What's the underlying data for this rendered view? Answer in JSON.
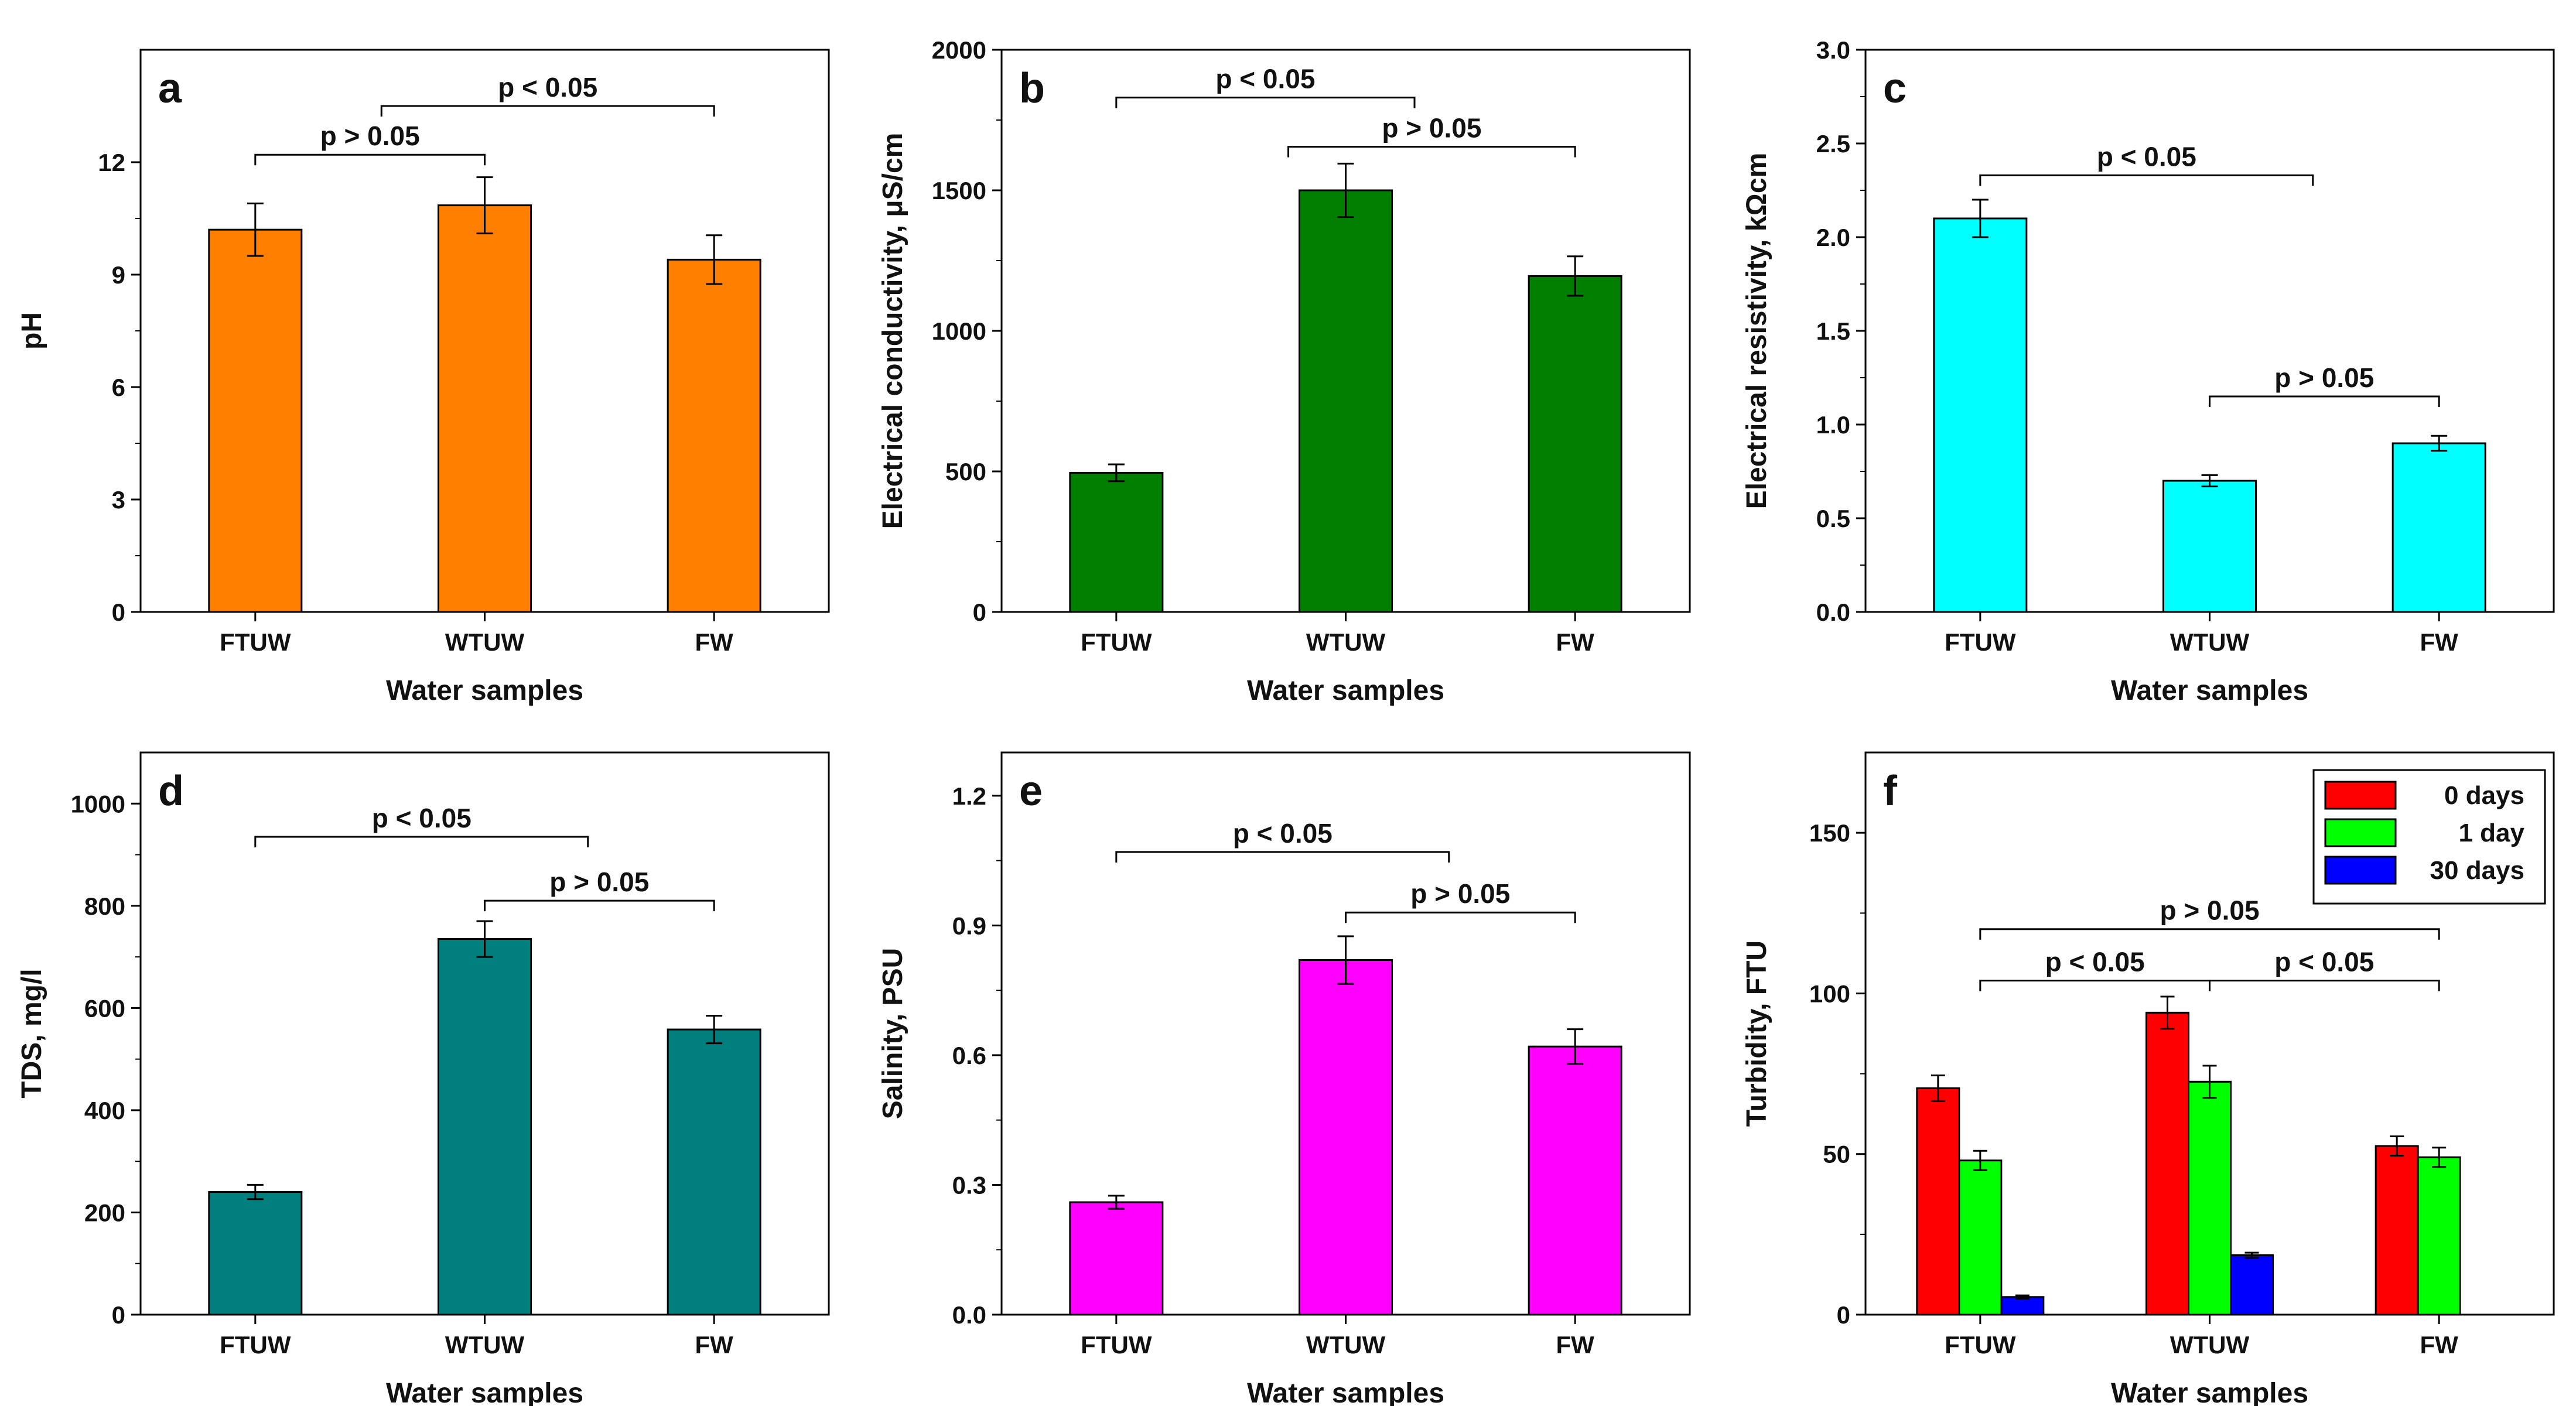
{
  "chart_data": [
    {
      "panel": "a",
      "type": "bar",
      "categories": [
        "FTUW",
        "WTUW",
        "FW"
      ],
      "values": [
        10.2,
        10.85,
        9.4
      ],
      "errors": [
        0.7,
        0.75,
        0.65
      ],
      "xlabel": "Water samples",
      "ylabel": "pH",
      "ylim": [
        0,
        15
      ],
      "yticks": [
        0,
        3,
        6,
        9,
        12
      ],
      "ytick_labels": [
        "0",
        "3",
        "6",
        "9",
        "12"
      ],
      "color": "#ff7f00",
      "significance": [
        {
          "from": 0,
          "to": 1,
          "label": "p > 0.05",
          "level": 12.2
        },
        {
          "from": 0.55,
          "to": 2,
          "label": "p < 0.05",
          "level": 13.5
        }
      ]
    },
    {
      "panel": "b",
      "type": "bar",
      "categories": [
        "FTUW",
        "WTUW",
        "FW"
      ],
      "values": [
        495,
        1500,
        1195
      ],
      "errors": [
        30,
        95,
        70
      ],
      "xlabel": "Water samples",
      "ylabel": "Electrical conductivity, μS/cm",
      "ylim": [
        0,
        2000
      ],
      "yticks": [
        0,
        500,
        1000,
        1500,
        2000
      ],
      "ytick_labels": [
        "0",
        "500",
        "1000",
        "1500",
        "2000"
      ],
      "color": "#007f00",
      "significance": [
        {
          "from": 0,
          "to": 1.3,
          "label": "p < 0.05",
          "level": 1830
        },
        {
          "from": 0.75,
          "to": 2,
          "label": "p > 0.05",
          "level": 1655
        }
      ]
    },
    {
      "panel": "c",
      "type": "bar",
      "categories": [
        "FTUW",
        "WTUW",
        "FW"
      ],
      "values": [
        2.1,
        0.7,
        0.9
      ],
      "errors": [
        0.1,
        0.03,
        0.04
      ],
      "xlabel": "Water samples",
      "ylabel": "Electrical resistivity, kΩcm",
      "ylim": [
        0,
        3.0
      ],
      "yticks": [
        0,
        0.5,
        1.0,
        1.5,
        2.0,
        2.5,
        3.0
      ],
      "ytick_labels": [
        "0.0",
        "0.5",
        "1.0",
        "1.5",
        "2.0",
        "2.5",
        "3.0"
      ],
      "color": "#00ffff",
      "significance": [
        {
          "from": 0,
          "to": 1.45,
          "label": "p < 0.05",
          "level": 2.33
        },
        {
          "from": 1,
          "to": 2,
          "label": "p > 0.05",
          "level": 1.15
        }
      ]
    },
    {
      "panel": "d",
      "type": "bar",
      "categories": [
        "FTUW",
        "WTUW",
        "FW"
      ],
      "values": [
        240,
        735,
        558
      ],
      "errors": [
        14,
        35,
        27
      ],
      "xlabel": "Water samples",
      "ylabel": "TDS, mg/l",
      "ylim": [
        0,
        1100
      ],
      "yticks": [
        0,
        200,
        400,
        600,
        800,
        1000
      ],
      "ytick_labels": [
        "0",
        "200",
        "400",
        "600",
        "800",
        "1000"
      ],
      "color": "#007f7f",
      "significance": [
        {
          "from": 0,
          "to": 1.45,
          "label": "p < 0.05",
          "level": 935
        },
        {
          "from": 1,
          "to": 2,
          "label": "p > 0.05",
          "level": 810
        }
      ]
    },
    {
      "panel": "e",
      "type": "bar",
      "categories": [
        "FTUW",
        "WTUW",
        "FW"
      ],
      "values": [
        0.26,
        0.82,
        0.62
      ],
      "errors": [
        0.015,
        0.055,
        0.04
      ],
      "xlabel": "Water samples",
      "ylabel": "Salinity, PSU",
      "ylim": [
        0,
        1.3
      ],
      "yticks": [
        0,
        0.3,
        0.6,
        0.9,
        1.2
      ],
      "ytick_labels": [
        "0.0",
        "0.3",
        "0.6",
        "0.9",
        "1.2"
      ],
      "color": "#ff00ff",
      "significance": [
        {
          "from": 0,
          "to": 1.45,
          "label": "p < 0.05",
          "level": 1.07
        },
        {
          "from": 1,
          "to": 2,
          "label": "p > 0.05",
          "level": 0.93
        }
      ]
    },
    {
      "panel": "f",
      "type": "bar",
      "categories": [
        "FTUW",
        "WTUW",
        "FW"
      ],
      "series": [
        {
          "name": "0 days",
          "values": [
            70.5,
            94,
            52.5
          ],
          "errors": [
            4,
            5,
            3
          ],
          "color": "#ff0000"
        },
        {
          "name": "1 day",
          "values": [
            48,
            72.5,
            49
          ],
          "errors": [
            3,
            5,
            3
          ],
          "color": "#00ff00"
        },
        {
          "name": "30 days",
          "values": [
            5.5,
            18.5,
            null
          ],
          "errors": [
            0.5,
            0.8,
            null
          ],
          "color": "#0000ff"
        }
      ],
      "xlabel": "Water samples",
      "ylabel": "Turbidity, FTU",
      "ylim": [
        0,
        175
      ],
      "yticks": [
        0,
        50,
        100,
        150
      ],
      "ytick_labels": [
        "0",
        "50",
        "100",
        "150"
      ],
      "legend_position": "top-right",
      "significance": [
        {
          "from": 0,
          "to": 2,
          "label": "p > 0.05",
          "level": 120
        },
        {
          "from": 0,
          "to": 1,
          "label": "p < 0.05",
          "level": 104
        },
        {
          "from": 1,
          "to": 2,
          "label": "p < 0.05",
          "level": 104
        }
      ]
    }
  ]
}
